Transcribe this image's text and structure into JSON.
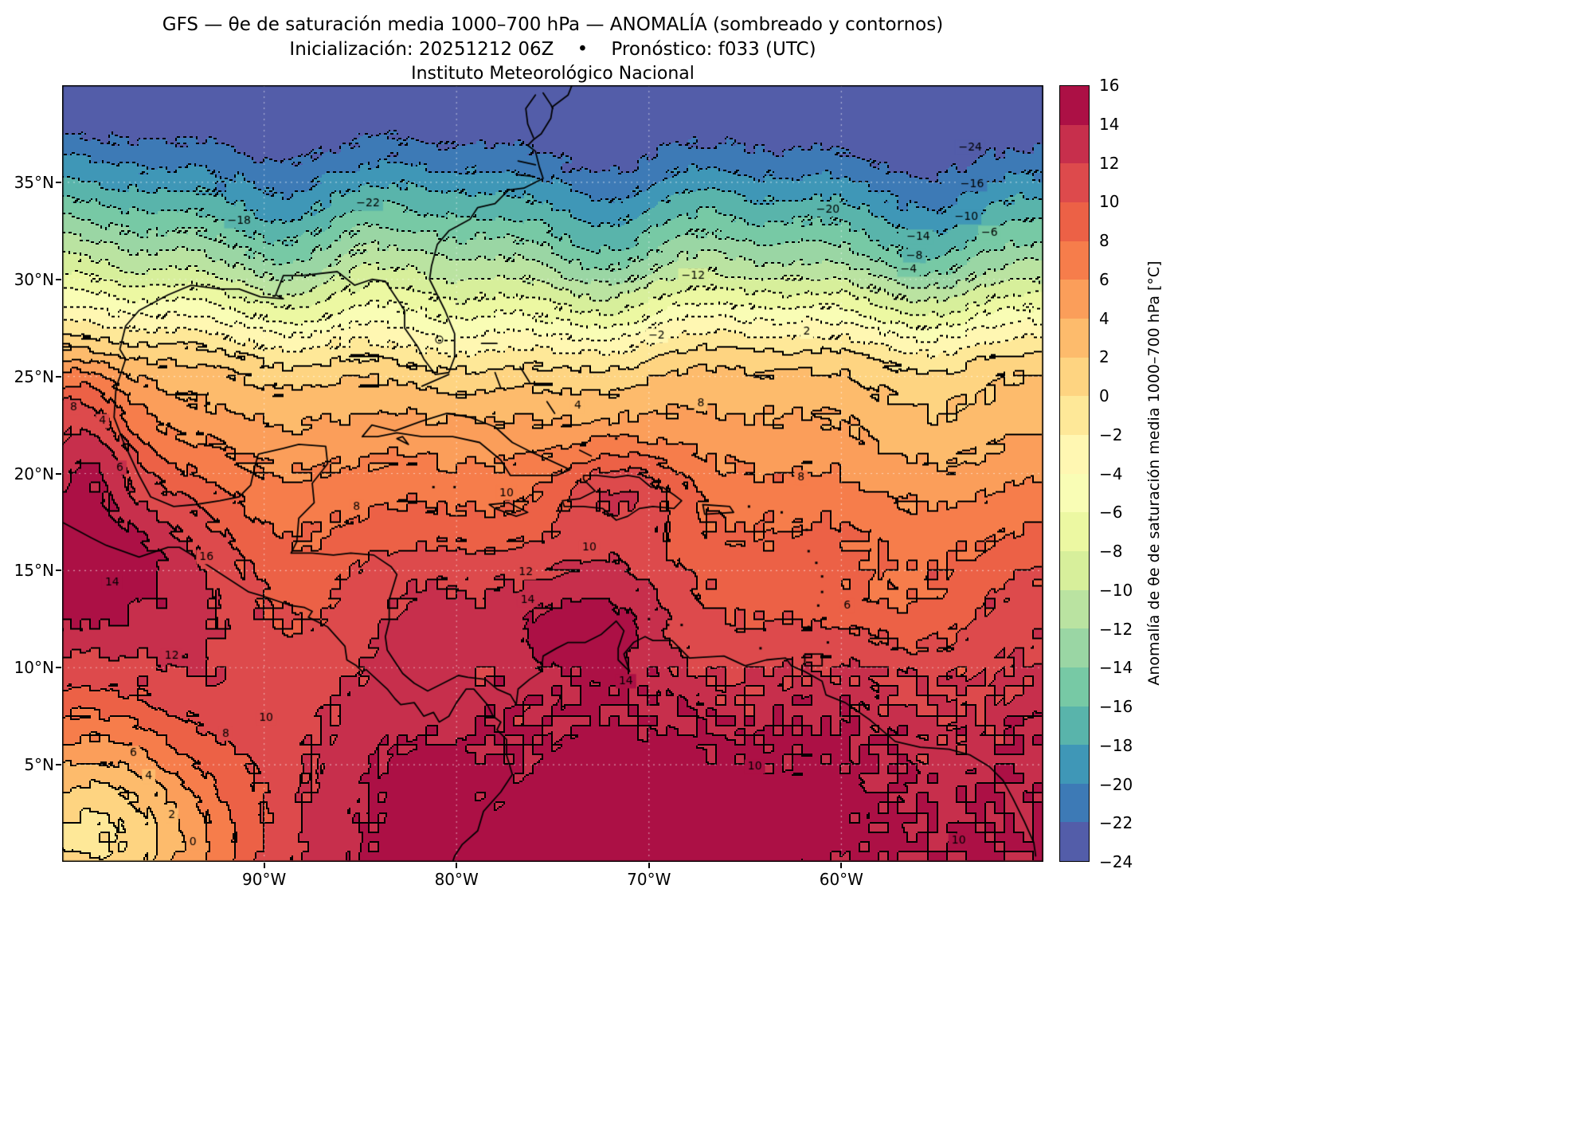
{
  "figure": {
    "title": "GFS — θe de saturación media 1000–700 hPa — ANOMALÍA (sombreado y contornos)",
    "subtitle": "Inicialización: 20251212 06Z    •    Pronóstico: f033 (UTC)",
    "credit": "Instituto Meteorológico Nacional"
  },
  "chart_data": {
    "type": "heatmap",
    "variable": "Anomalía de θe de saturación media 1000–700 hPa",
    "units": "°C",
    "model": "GFS",
    "init": "20251212 06Z",
    "forecast_hour": "f033 (UTC)",
    "extent": {
      "lon_min": -100.5,
      "lon_max": -49.5,
      "lat_min": 0.0,
      "lat_max": 40.0
    },
    "x_ticks": [
      {
        "value": -90,
        "label": "90°W"
      },
      {
        "value": -80,
        "label": "80°W"
      },
      {
        "value": -70,
        "label": "70°W"
      },
      {
        "value": -60,
        "label": "60°W"
      }
    ],
    "y_ticks": [
      {
        "value": 35,
        "label": "35°N"
      },
      {
        "value": 30,
        "label": "30°N"
      },
      {
        "value": 25,
        "label": "25°N"
      },
      {
        "value": 20,
        "label": "20°N"
      },
      {
        "value": 15,
        "label": "15°N"
      },
      {
        "value": 10,
        "label": "10°N"
      },
      {
        "value": 5,
        "label": "5°N"
      }
    ],
    "levels": {
      "min": -24,
      "max": 16,
      "step": 2
    },
    "contour_style": {
      "negative": "dotted",
      "zero_and_positive": "solid",
      "color": "#000000"
    },
    "colormap": {
      "name": "Spectral_r",
      "anchors": [
        "#5e4fa2",
        "#3288bd",
        "#66c2a5",
        "#abdda4",
        "#e6f598",
        "#ffffbf",
        "#fee08b",
        "#fdae61",
        "#f46d43",
        "#d53e4f",
        "#9e0142"
      ]
    },
    "colorbar": {
      "label": "Anomalía de θe de saturación media 1000–700 hPa [°C]",
      "tick_values": [
        16,
        14,
        12,
        10,
        8,
        6,
        4,
        2,
        0,
        -2,
        -4,
        -6,
        -8,
        -10,
        -12,
        -14,
        -16,
        -18,
        -20,
        -22,
        -24
      ]
    },
    "gridlines": {
      "lons": [
        -90,
        -80,
        -70,
        -60
      ],
      "lats": [
        5,
        10,
        15,
        20,
        25,
        30,
        35
      ],
      "style": "dashed",
      "color": "rgba(255,255,255,0.55)"
    },
    "field_model": {
      "base_by_lat": [
        [
          0,
          13.8
        ],
        [
          3,
          13.3
        ],
        [
          6,
          12.7
        ],
        [
          9,
          11.9
        ],
        [
          12,
          10.8
        ],
        [
          15,
          9.4
        ],
        [
          18,
          7.6
        ],
        [
          20,
          6.2
        ],
        [
          22,
          4.8
        ],
        [
          24,
          3.2
        ],
        [
          25,
          2.2
        ],
        [
          26,
          0.5
        ],
        [
          27,
          -2.0
        ],
        [
          28,
          -4.8
        ],
        [
          29,
          -7.5
        ],
        [
          30,
          -10.2
        ],
        [
          31,
          -12.5
        ],
        [
          32,
          -14.5
        ],
        [
          33,
          -16.3
        ],
        [
          34,
          -18.0
        ],
        [
          35,
          -19.6
        ],
        [
          36,
          -21.2
        ],
        [
          37,
          -22.5
        ],
        [
          38,
          -23.5
        ],
        [
          39,
          -24.4
        ],
        [
          40,
          -25.2
        ]
      ],
      "waves_north": {
        "center_lat": 31,
        "sigma": 6.5,
        "tilt_per_deg": -0.045,
        "tilt_ref_lon": -75,
        "terms": [
          {
            "amp": 1.5,
            "wavelength": 17,
            "phase": 0.8
          },
          {
            "amp": 0.9,
            "wavelength": 8.3,
            "phase": 2.1
          }
        ]
      },
      "waves_south": {
        "center_lat": 12,
        "sigma": 8,
        "terms": [
          {
            "amp": 0.8,
            "wavelength": 11,
            "phase": 4.0
          }
        ]
      },
      "blobs": [
        [
          -100.0,
          16.0,
          8.0,
          6.0,
          5.0
        ],
        [
          -99.0,
          20.5,
          4.0,
          2.5,
          2.0
        ],
        [
          -99.8,
          23.5,
          5.0,
          2.8,
          2.2
        ],
        [
          -71.5,
          19.2,
          4.5,
          3.5,
          2.2
        ],
        [
          -75.5,
          13.5,
          3.2,
          7.0,
          4.0
        ],
        [
          -74.0,
          11.5,
          2.0,
          3.0,
          1.8
        ],
        [
          -70.0,
          3.0,
          3.2,
          14.0,
          5.0
        ],
        [
          -99.0,
          1.0,
          -14.0,
          8.0,
          6.0
        ],
        [
          -80.5,
          26.5,
          -2.6,
          7.0,
          2.8
        ],
        [
          -59.5,
          13.5,
          -2.2,
          5.0,
          2.5
        ],
        [
          -54.0,
          21.0,
          -1.5,
          6.0,
          4.0
        ]
      ],
      "noise": {
        "cell_deg": 0.5,
        "base_amp": 0.5,
        "boost_amp": 1.0,
        "boost_region": {
          "lat_max": 10,
          "lon_min": -79
        }
      },
      "speckles": [
        [
          -63.2,
          19.6,
          2.2
        ],
        [
          -55.4,
          14.8,
          2.2
        ],
        [
          -52.3,
          13.0,
          2.2
        ],
        [
          -85.6,
          8.9,
          2.2
        ],
        [
          -96.4,
          9.0,
          2.2
        ],
        [
          -86.2,
          26.8,
          1.8
        ],
        [
          -61.8,
          27.6,
          1.8
        ],
        [
          -83.4,
          36.3,
          -1.6
        ],
        [
          -74.2,
          35.7,
          -1.6
        ],
        [
          -92.5,
          34.5,
          -1.6
        ],
        [
          -57.5,
          8.5,
          2.2
        ],
        [
          -67.0,
          14.0,
          2.0
        ],
        [
          -58.8,
          21.5,
          1.8
        ],
        [
          -90.5,
          12.5,
          2.0
        ]
      ]
    },
    "contour_labels": [
      [
        -24,
        -53.3,
        36.8
      ],
      [
        -22,
        -84.6,
        33.9
      ],
      [
        -20,
        -60.7,
        33.6
      ],
      [
        -18,
        -91.3,
        33.0
      ],
      [
        -16,
        -53.2,
        34.9
      ],
      [
        -14,
        -56.0,
        32.2
      ],
      [
        -12,
        -67.7,
        30.2
      ],
      [
        -10,
        -53.5,
        33.2
      ],
      [
        -8,
        -56.2,
        31.2
      ],
      [
        -6,
        -52.3,
        32.4
      ],
      [
        -4,
        -56.5,
        30.5
      ],
      [
        -2,
        -69.6,
        27.1
      ],
      [
        2,
        -61.8,
        27.3
      ],
      [
        2,
        -94.8,
        2.4
      ],
      [
        0,
        -93.7,
        1.0
      ],
      [
        4,
        -73.7,
        23.5
      ],
      [
        4,
        -98.4,
        22.7
      ],
      [
        4,
        -96.0,
        4.4
      ],
      [
        6,
        -97.5,
        20.3
      ],
      [
        6,
        -96.8,
        5.6
      ],
      [
        6,
        -59.7,
        13.2
      ],
      [
        8,
        -99.9,
        23.4
      ],
      [
        8,
        -85.2,
        18.3
      ],
      [
        8,
        -62.1,
        19.8
      ],
      [
        8,
        -92.0,
        6.6
      ],
      [
        8,
        -67.3,
        23.6
      ],
      [
        10,
        -77.4,
        19.0
      ],
      [
        10,
        -89.9,
        7.4
      ],
      [
        10,
        -64.5,
        4.9
      ],
      [
        10,
        -53.9,
        1.1
      ],
      [
        10,
        -73.1,
        16.2
      ],
      [
        12,
        -76.4,
        14.9
      ],
      [
        12,
        -94.8,
        10.6
      ],
      [
        14,
        -76.3,
        13.5
      ],
      [
        14,
        -97.9,
        14.4
      ],
      [
        14,
        -71.2,
        9.3
      ],
      [
        16,
        -93.0,
        15.7
      ]
    ]
  }
}
